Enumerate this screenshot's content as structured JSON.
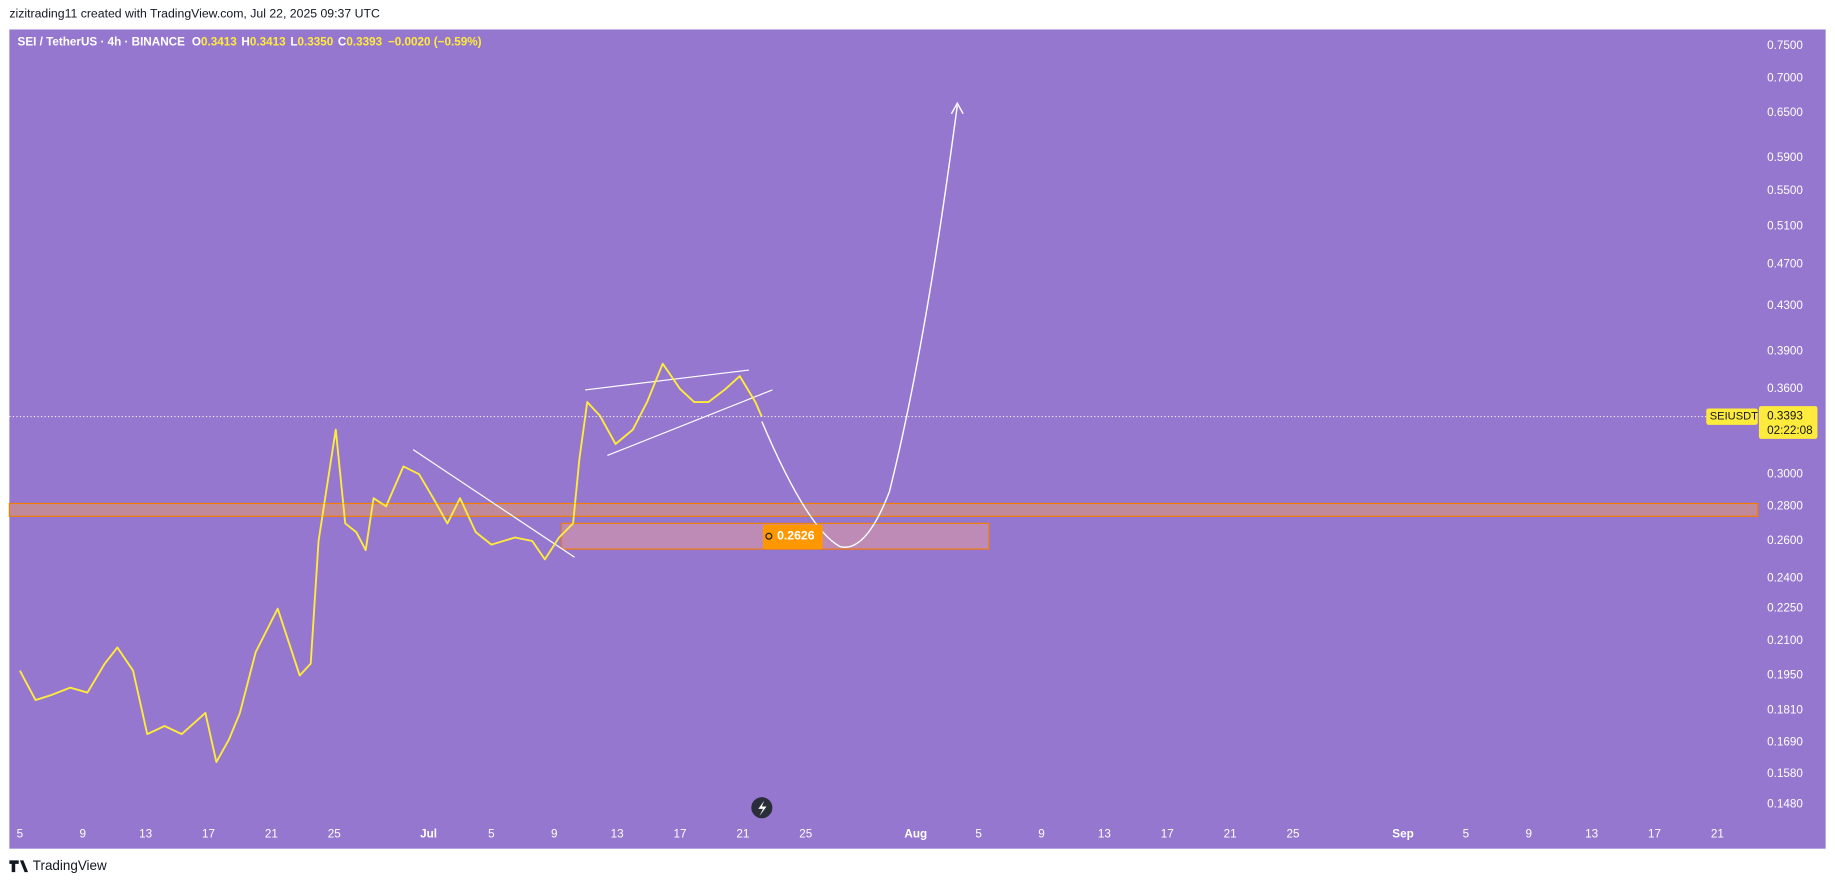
{
  "header": "zizitrading11 created with TradingView.com, Jul 22, 2025 09:37 UTC",
  "footer": "TradingView",
  "chart_data": {
    "type": "line",
    "symbol": "SEI / TetherUS · 4h · BINANCE",
    "ohlc": [
      {
        "label": "O",
        "value": "0.3413"
      },
      {
        "label": "H",
        "value": "0.3413"
      },
      {
        "label": "L",
        "value": "0.3350"
      },
      {
        "label": "C",
        "value": "0.3393"
      }
    ],
    "change": "−0.0020 (−0.59%)",
    "log_scale": true,
    "grid": false,
    "x": [
      5,
      6,
      7,
      8.2,
      9.3,
      10.4,
      11.2,
      12.2,
      13.1,
      14.2,
      15.3,
      16.8,
      17.5,
      18.3,
      19,
      20,
      21.4,
      22.8,
      23.5,
      24,
      24.5,
      25.1,
      25.7,
      26.4,
      27,
      27.5,
      28.3,
      29.4,
      30.4,
      31.3,
      32.2,
      33,
      34,
      35,
      36.5,
      37.6,
      38.4,
      39.3,
      40.2,
      40.6,
      41.1,
      41.9,
      42.9,
      44,
      44.9,
      45.9,
      47,
      47.9,
      48.8,
      49.9,
      50.8,
      51.8,
      52.2
    ],
    "series": [
      {
        "name": "SEIUSDT",
        "color": "#ffeb3b",
        "values": [
          0.197,
          0.185,
          0.187,
          0.19,
          0.188,
          0.2,
          0.207,
          0.197,
          0.172,
          0.175,
          0.172,
          0.18,
          0.162,
          0.17,
          0.18,
          0.205,
          0.225,
          0.195,
          0.2,
          0.26,
          0.29,
          0.33,
          0.27,
          0.265,
          0.255,
          0.285,
          0.28,
          0.305,
          0.3,
          0.285,
          0.27,
          0.285,
          0.265,
          0.258,
          0.262,
          0.26,
          0.25,
          0.262,
          0.27,
          0.31,
          0.35,
          0.34,
          0.32,
          0.33,
          0.35,
          0.38,
          0.36,
          0.35,
          0.35,
          0.36,
          0.37,
          0.35,
          0.3393
        ]
      }
    ],
    "xlim": [
      4.33,
      115.57
    ],
    "xticks": [
      5,
      9,
      13,
      17,
      21,
      25,
      {
        "value": 31,
        "label": "Jul"
      },
      {
        "value": 35,
        "label": "5"
      },
      {
        "value": 39,
        "label": "9"
      },
      {
        "value": 43,
        "label": "13"
      },
      {
        "value": 47,
        "label": "17"
      },
      {
        "value": 51,
        "label": "21"
      },
      {
        "value": 55,
        "label": "25"
      },
      {
        "value": 62,
        "label": "Aug"
      },
      {
        "value": 66,
        "label": "5"
      },
      {
        "value": 70,
        "label": "9"
      },
      {
        "value": 74,
        "label": "13"
      },
      {
        "value": 78,
        "label": "17"
      },
      {
        "value": 82,
        "label": "21"
      },
      {
        "value": 86,
        "label": "25"
      },
      {
        "value": 93,
        "label": "Sep"
      },
      {
        "value": 97,
        "label": "5"
      },
      {
        "value": 101,
        "label": "9"
      },
      {
        "value": 105,
        "label": "13"
      },
      {
        "value": 109,
        "label": "17"
      },
      {
        "value": 113,
        "label": "21"
      }
    ],
    "ylim": [
      0.1433,
      0.777
    ],
    "yticks": [
      {
        "value": 0.75,
        "label": "0.7500"
      },
      {
        "value": 0.7,
        "label": "0.7000"
      },
      {
        "value": 0.65,
        "label": "0.6500"
      },
      {
        "value": 0.59,
        "label": "0.5900"
      },
      {
        "value": 0.55,
        "label": "0.5500"
      },
      {
        "value": 0.51,
        "label": "0.5100"
      },
      {
        "value": 0.47,
        "label": "0.4700"
      },
      {
        "value": 0.43,
        "label": "0.4300"
      },
      {
        "value": 0.39,
        "label": "0.3900"
      },
      {
        "value": 0.36,
        "label": "0.3600"
      },
      {
        "value": 0.3,
        "label": "0.3000"
      },
      {
        "value": 0.28,
        "label": "0.2800"
      },
      {
        "value": 0.26,
        "label": "0.2600"
      },
      {
        "value": 0.24,
        "label": "0.2400"
      },
      {
        "value": 0.225,
        "label": "0.2250"
      },
      {
        "value": 0.21,
        "label": "0.2100"
      },
      {
        "value": 0.195,
        "label": "0.1950"
      },
      {
        "value": 0.181,
        "label": "0.1810"
      },
      {
        "value": 0.169,
        "label": "0.1690"
      },
      {
        "value": 0.158,
        "label": "0.1580"
      },
      {
        "value": 0.148,
        "label": "0.1480"
      }
    ],
    "last_price": {
      "value": 0.3393,
      "label": "0.3393"
    },
    "countdown": "02:22:08",
    "zone_label": "0.2626"
  }
}
